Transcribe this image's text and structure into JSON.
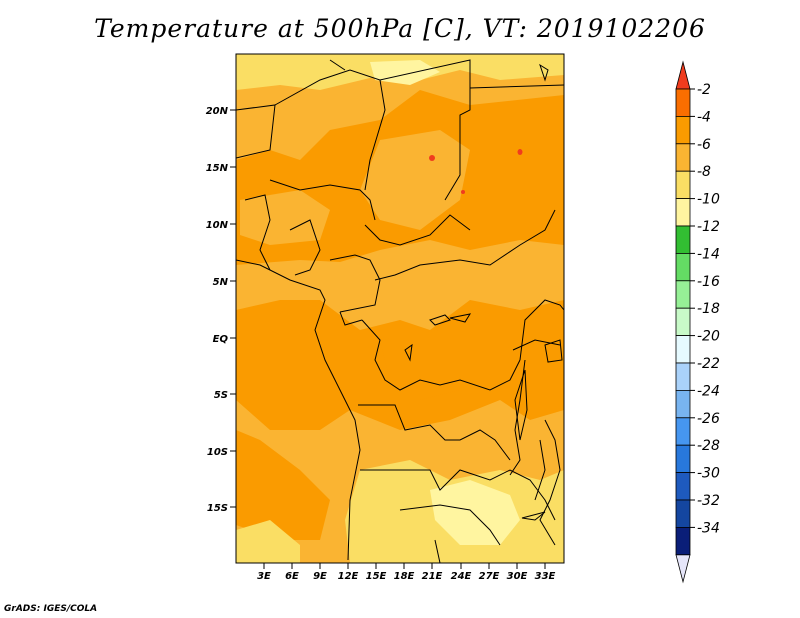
{
  "title": "Temperature at 500hPa [C], VT: 2019102206",
  "credit": "GrADS: IGES/COLA",
  "map": {
    "lat_labels": [
      "20N",
      "15N",
      "10N",
      "5N",
      "EQ",
      "5S",
      "10S",
      "15S"
    ],
    "lon_labels": [
      "3E",
      "6E",
      "9E",
      "12E",
      "15E",
      "18E",
      "21E",
      "24E",
      "27E",
      "30E",
      "33E"
    ]
  },
  "colorbar": {
    "labels": [
      "-2",
      "-4",
      "-6",
      "-8",
      "-10",
      "-12",
      "-14",
      "-16",
      "-18",
      "-20",
      "-22",
      "-24",
      "-26",
      "-28",
      "-30",
      "-32",
      "-34"
    ],
    "colors": [
      "#f03c1e",
      "#fa6e00",
      "#fa9b00",
      "#fab432",
      "#fade64",
      "#fff5a0",
      "#32be32",
      "#64dc64",
      "#96f096",
      "#c8fac8",
      "#e6faff",
      "#aad2fa",
      "#78b4f0",
      "#4696f0",
      "#2878dc",
      "#1e5abe",
      "#1446a0",
      "#0a1e78",
      "#e6e6fa"
    ]
  }
}
